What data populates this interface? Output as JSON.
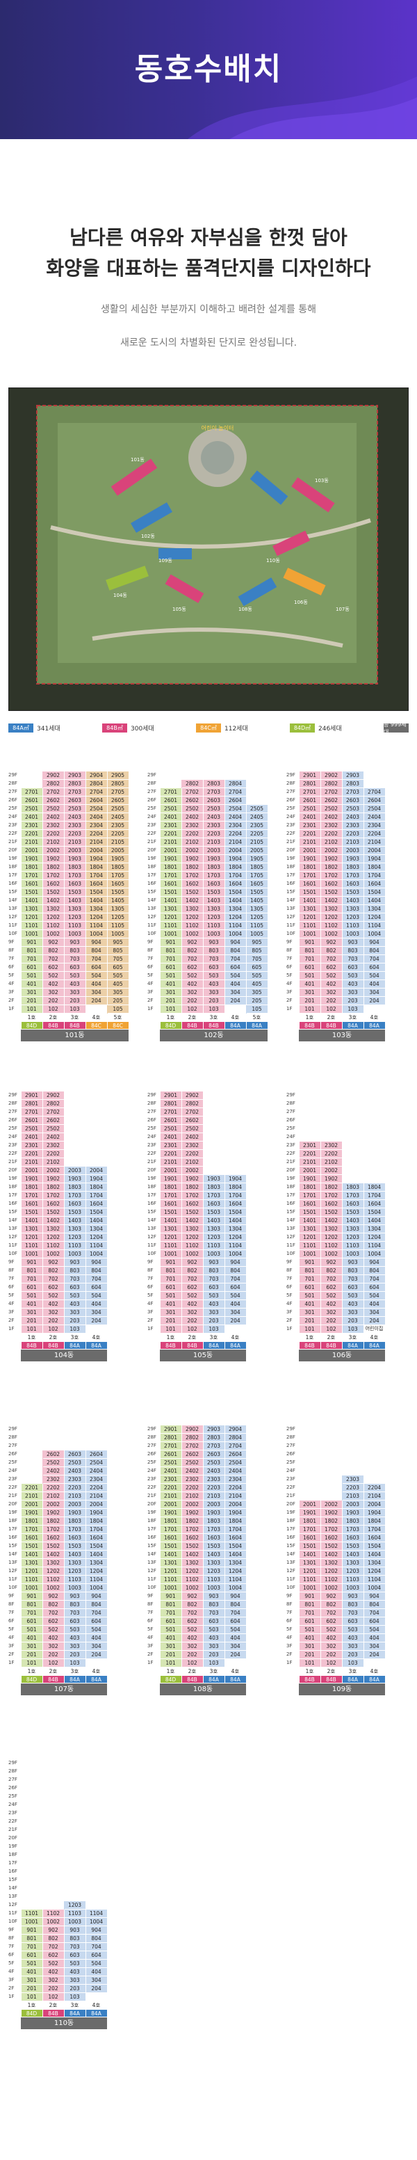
{
  "header": {
    "title": "동호수배치"
  },
  "intro": {
    "headline1": "남다른 여유와 자부심을 한껏 담아",
    "headline2": "화양을 대표하는 품격단지를 디자인하다",
    "body1": "생활의 세심한 부분까지 이해하고 배려한 설계를 통해",
    "body2": "새로운 도시의 차별화된 단지로 완성됩니다."
  },
  "site_plan": {
    "building_labels": [
      "101동",
      "102동",
      "103동",
      "104동",
      "105동",
      "106동",
      "107동",
      "108동",
      "109동",
      "110동"
    ],
    "road_label": "어린이 놀이터"
  },
  "legend": [
    {
      "type": "84A㎡",
      "count": "341세대",
      "color": "#3a80c4"
    },
    {
      "type": "84B㎡",
      "count": "300세대",
      "color": "#d9437a"
    },
    {
      "type": "84C㎡",
      "count": "112세대",
      "color": "#f0a335"
    },
    {
      "type": "84D㎡",
      "count": "246세대",
      "color": "#9bbf3c"
    },
    {
      "type": "총 999세대",
      "count": "",
      "color": "#6b6b6b"
    }
  ],
  "floors": [
    "29F",
    "28F",
    "27F",
    "26F",
    "25F",
    "24F",
    "23F",
    "22F",
    "21F",
    "20F",
    "19F",
    "18F",
    "17F",
    "16F",
    "15F",
    "14F",
    "13F",
    "12F",
    "11F",
    "10F",
    "9F",
    "8F",
    "7F",
    "6F",
    "5F",
    "4F",
    "3F",
    "2F",
    "1F"
  ],
  "buildings": [
    {
      "name": "101동",
      "line_labels": [
        "1호",
        "2호",
        "3호",
        "4호",
        "5호"
      ],
      "types": [
        "84D",
        "84B",
        "84B",
        "84C",
        "84C"
      ],
      "tops": [
        27,
        29,
        29,
        29,
        29
      ],
      "has_pilot": false
    },
    {
      "name": "102동",
      "line_labels": [
        "1호",
        "2호",
        "3호",
        "4호",
        "5호"
      ],
      "types": [
        "84D",
        "84B",
        "84B",
        "84A",
        "84A"
      ],
      "tops": [
        27,
        28,
        28,
        28,
        25
      ],
      "has_pilot": false
    },
    {
      "name": "103동",
      "line_labels": [
        "1호",
        "2호",
        "3호",
        "4호"
      ],
      "types": [
        "84B",
        "84B",
        "84A",
        "84A"
      ],
      "tops": [
        29,
        29,
        29,
        27
      ],
      "has_pilot": false
    },
    {
      "name": "104동",
      "line_labels": [
        "1호",
        "2호",
        "3호",
        "4호"
      ],
      "types": [
        "84B",
        "84B",
        "84A",
        "84A"
      ],
      "tops": [
        29,
        29,
        20,
        20
      ],
      "has_pilot": false
    },
    {
      "name": "105동",
      "line_labels": [
        "1호",
        "2호",
        "3호",
        "4호"
      ],
      "types": [
        "84B",
        "84B",
        "84A",
        "84A"
      ],
      "tops": [
        29,
        29,
        19,
        19
      ],
      "has_pilot": false
    },
    {
      "name": "106동",
      "line_labels": [
        "1호",
        "2호",
        "3호",
        "4호"
      ],
      "types": [
        "84B",
        "84B",
        "84A",
        "84A"
      ],
      "tops": [
        23,
        23,
        18,
        18
      ],
      "has_pilot": true,
      "pilot_note": "어린이집"
    },
    {
      "name": "107동",
      "line_labels": [
        "1호",
        "2호",
        "3호",
        "4호"
      ],
      "types": [
        "84D",
        "84B",
        "84A",
        "84A"
      ],
      "tops": [
        22,
        26,
        26,
        26
      ],
      "has_pilot": false
    },
    {
      "name": "108동",
      "line_labels": [
        "1호",
        "2호",
        "3호",
        "4호"
      ],
      "types": [
        "84D",
        "84B",
        "84A",
        "84A"
      ],
      "tops": [
        29,
        29,
        29,
        29
      ],
      "has_pilot": false
    },
    {
      "name": "109동",
      "line_labels": [
        "1호",
        "2호",
        "3호",
        "4호"
      ],
      "types": [
        "84B",
        "84B",
        "84A",
        "84A"
      ],
      "tops": [
        20,
        20,
        23,
        22
      ],
      "has_pilot": false
    },
    {
      "name": "110동",
      "line_labels": [
        "1호",
        "2호",
        "3호",
        "4호"
      ],
      "types": [
        "84D",
        "84B",
        "84A",
        "84A"
      ],
      "tops": [
        11,
        11,
        12,
        11
      ],
      "has_pilot": false
    }
  ]
}
